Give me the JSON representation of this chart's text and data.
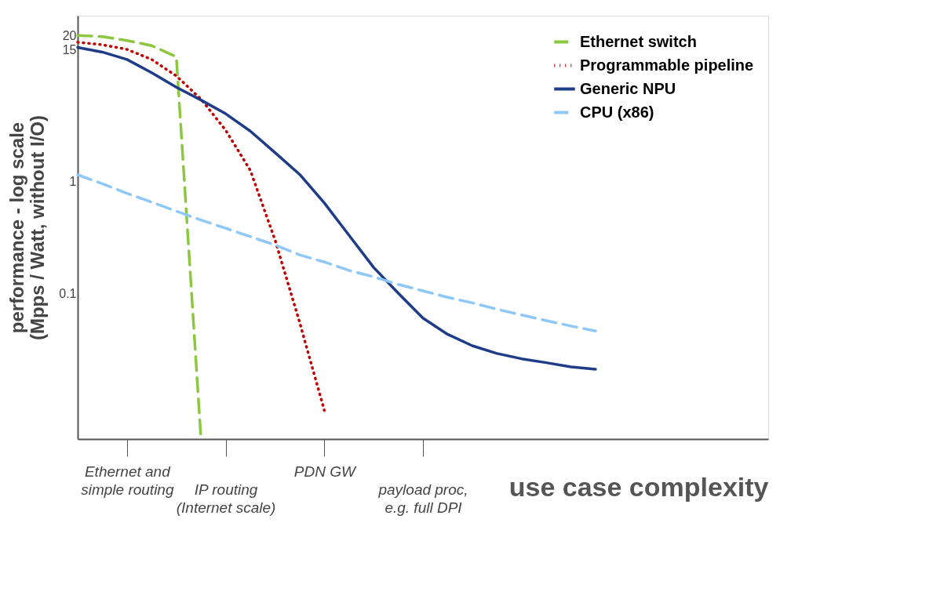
{
  "chart_data": {
    "type": "line",
    "xlabel": "use case complexity",
    "ylabel": "performance - log scale\n(Mpps / Watt, without I/O)",
    "log": "y",
    "grid": false,
    "legend": "top right",
    "marker": "none",
    "ylim": [
      0.005,
      30
    ],
    "yticks": [
      0.1,
      1,
      15,
      20
    ],
    "categories": [
      null,
      null,
      "Ethernet and\nsimple routing",
      null,
      null,
      null,
      "IP routing\n(Internet scale)",
      null,
      null,
      null,
      "PDN GW",
      null,
      null,
      null,
      "payload proc,\ne.g. full DPI",
      null,
      null,
      null,
      null,
      null,
      null,
      null,
      null,
      null,
      null,
      null,
      null,
      null,
      null
    ],
    "series": [
      {
        "name": "Ethernet switch",
        "color": "#8dc63f",
        "line_style": "dashed",
        "values": [
          20,
          19.5,
          18,
          16.2,
          12.9,
          0.005,
          null,
          null,
          null,
          null,
          null,
          null,
          null,
          null,
          null,
          null,
          null,
          null,
          null,
          null,
          null,
          null,
          null,
          null,
          null,
          null,
          null,
          null,
          null
        ]
      },
      {
        "name": "Programmable pipeline",
        "color": "#c00000",
        "line_style": "dotted",
        "values": [
          17.4,
          16.5,
          15,
          12.2,
          8.7,
          5.4,
          2.85,
          1.25,
          0.3,
          0.055,
          0.009,
          null,
          null,
          null,
          null,
          null,
          null,
          null,
          null,
          null,
          null,
          null,
          null,
          null,
          null,
          null,
          null,
          null,
          null
        ]
      },
      {
        "name": "Generic NPU",
        "color": "#1f3c88",
        "line_style": "solid",
        "values": [
          15.6,
          14.2,
          12.2,
          9.3,
          6.9,
          5.3,
          4.0,
          2.8,
          1.8,
          1.15,
          0.64,
          0.33,
          0.17,
          0.1,
          0.06,
          0.043,
          0.034,
          0.029,
          0.026,
          0.024,
          0.022,
          0.021,
          null,
          null,
          null,
          null,
          null,
          null,
          null
        ]
      },
      {
        "name": "CPU (x86)",
        "color": "#8ec8f8",
        "line_style": "dashed",
        "values": [
          1.14,
          0.95,
          0.78,
          0.65,
          0.54,
          0.45,
          0.38,
          0.32,
          0.27,
          0.22,
          0.19,
          0.16,
          0.14,
          0.12,
          0.105,
          0.092,
          0.082,
          0.072,
          0.064,
          0.057,
          0.051,
          0.046,
          null,
          null,
          null,
          null,
          null,
          null,
          null
        ]
      }
    ]
  }
}
